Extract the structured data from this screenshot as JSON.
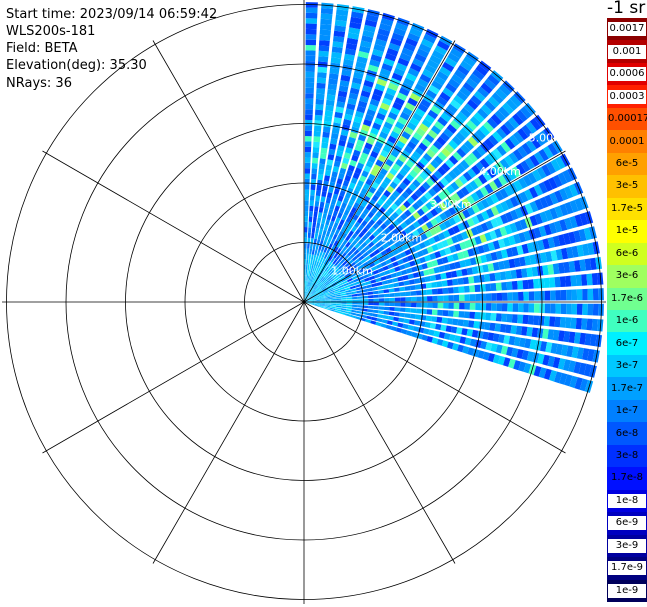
{
  "info": {
    "start_time": "Start time: 2023/09/14 06:59:42",
    "instrument": "WLS200s-181",
    "field": "Field: BETA",
    "elevation": "Elevation(deg): 35.30",
    "nrays": "NRays: 36"
  },
  "colorbar": {
    "units_label": "-1 sr",
    "ticks": [
      "0.0017",
      "0.001",
      "0.0006",
      "0.0003",
      "0.00017",
      "0.0001",
      "6e-5",
      "3e-5",
      "1.7e-5",
      "1e-5",
      "6e-6",
      "3e-6",
      "1.7e-6",
      "1e-6",
      "6e-7",
      "3e-7",
      "1.7e-7",
      "1e-7",
      "6e-8",
      "3e-8",
      "1.7e-8",
      "1e-8",
      "6e-9",
      "3e-9",
      "1.7e-9",
      "1e-9"
    ],
    "colors": [
      "#8b0000",
      "#b40000",
      "#e00000",
      "#ff2000",
      "#ff5000",
      "#ff8000",
      "#ffa000",
      "#ffc000",
      "#ffe000",
      "#ffff00",
      "#d0ff20",
      "#a0ff60",
      "#70ff90",
      "#40ffc0",
      "#00f0ff",
      "#00c8ff",
      "#00a0ff",
      "#0080ff",
      "#0058ff",
      "#0030ff",
      "#0010ff",
      "#0000e0",
      "#0000c0",
      "#0000a0",
      "#000080",
      "#00005a"
    ]
  },
  "chart_data": {
    "type": "ppi",
    "title": "",
    "range_labels": [
      "1.00km",
      "2.00km",
      "3.00km",
      "4.00km",
      "5.00km"
    ],
    "azimuth_start_deg": 0,
    "azimuth_end_deg": 108,
    "n_rays": 36,
    "max_range_km": 5.0
  }
}
